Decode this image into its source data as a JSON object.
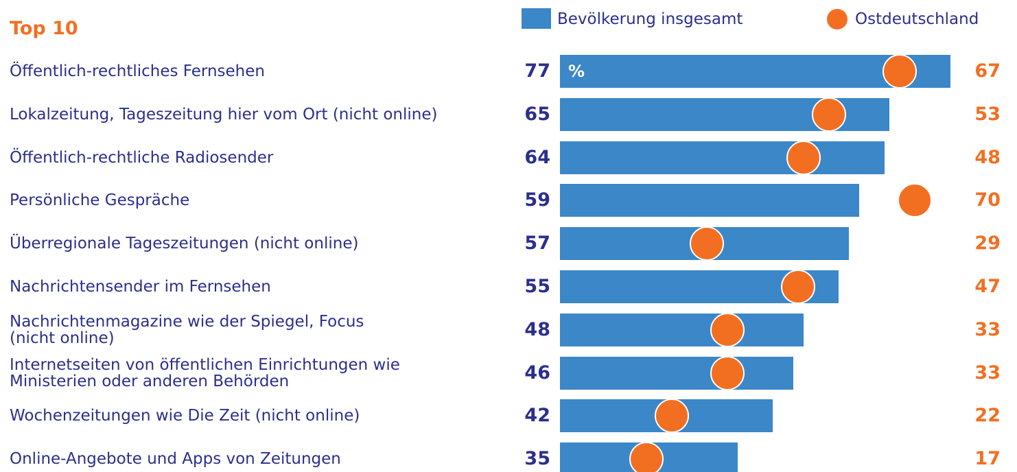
{
  "chart_data": {
    "type": "bar-dot",
    "title": "Top 10",
    "unit_label": "%",
    "categories": [
      "Öffentlich-rechtliches Fernsehen",
      "Lokalzeitung, Tageszeitung hier vom Ort (nicht online)",
      "Öffentlich-rechtliche Radiosender",
      "Persönliche Gespräche",
      "Überregionale Tageszeitungen (nicht online)",
      "Nachrichtensender im Fernsehen",
      "Nachrichtenmagazine wie der Spiegel, Focus\n(nicht online)",
      "Internetseiten von öffentlichen Einrichtungen wie\nMinisterien oder anderen Behörden",
      "Wochenzeitungen wie Die Zeit (nicht online)",
      "Online-Angebote und Apps von Zeitungen"
    ],
    "series": [
      {
        "name": "Bevölkerung insgesamt",
        "color": "#3b87c8",
        "label_color": "#2b2f8c",
        "values": [
          77,
          65,
          64,
          59,
          57,
          55,
          48,
          46,
          42,
          35
        ]
      },
      {
        "name": "Ostdeutschland",
        "color": "#f26f21",
        "label_color": "#f26f21",
        "values": [
          67,
          53,
          48,
          70,
          29,
          47,
          33,
          33,
          22,
          17
        ]
      }
    ]
  }
}
